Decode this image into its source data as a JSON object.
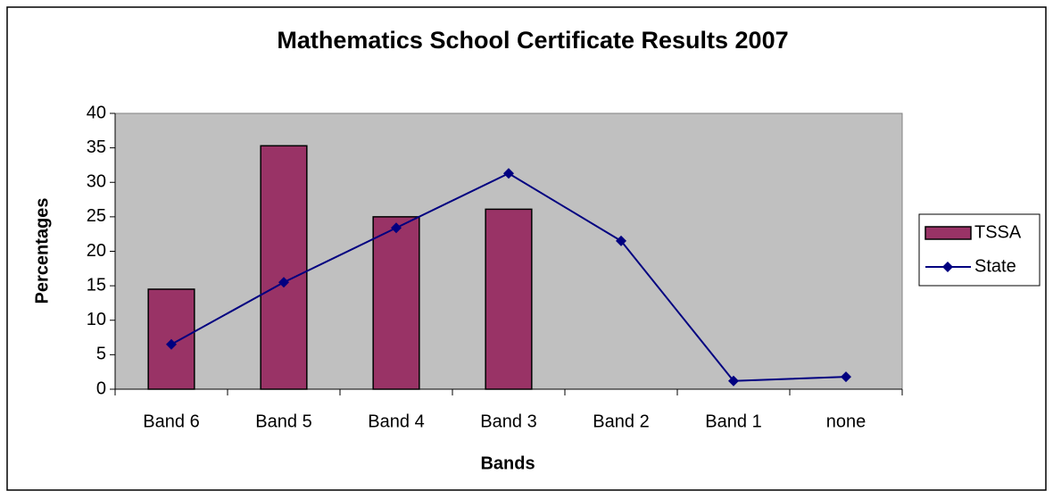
{
  "chart_data": {
    "type": "bar",
    "title": "Mathematics School Certificate Results 2007",
    "x_label": "Bands",
    "y_label": "Percentages",
    "categories": [
      "Band 6",
      "Band 5",
      "Band 4",
      "Band 3",
      "Band 2",
      "Band 1",
      "none"
    ],
    "series": [
      {
        "name": "TSSA",
        "type": "bar",
        "color": "#993366",
        "values": [
          14.5,
          35.3,
          25.0,
          26.1,
          0,
          0,
          0
        ]
      },
      {
        "name": "State",
        "type": "line",
        "color": "#000080",
        "values": [
          6.5,
          15.5,
          23.4,
          31.3,
          21.5,
          1.2,
          1.8
        ]
      }
    ],
    "ylim": [
      0,
      40
    ],
    "yticks": [
      0,
      5,
      10,
      15,
      20,
      25,
      30,
      35,
      40
    ],
    "grid": false,
    "legend": "right",
    "plot_background": "#c0c0c0"
  }
}
